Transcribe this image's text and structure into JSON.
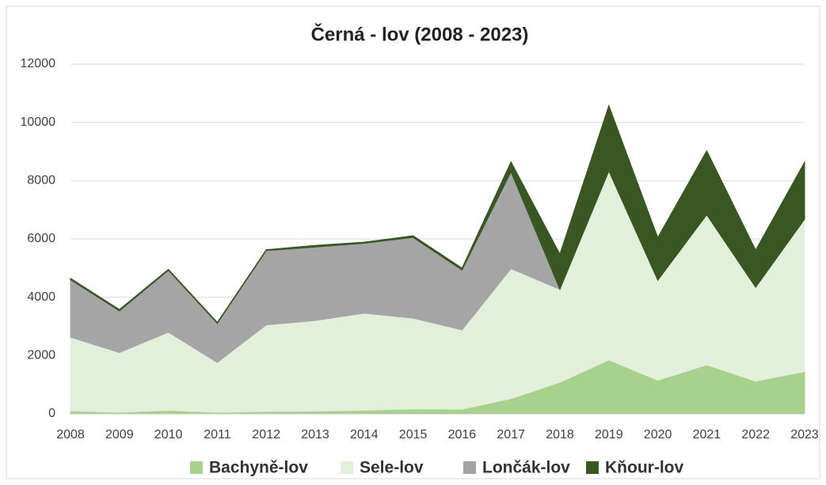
{
  "chart_data": {
    "type": "stacked_area",
    "title": "Černá - lov (2008 - 2023)",
    "categories": [
      "2008",
      "2009",
      "2010",
      "2011",
      "2012",
      "2013",
      "2014",
      "2015",
      "2016",
      "2017",
      "2018",
      "2019",
      "2020",
      "2021",
      "2022",
      "2023"
    ],
    "series": [
      {
        "name": "Bachyně-lov",
        "color": "#a9d18e",
        "values": [
          100,
          50,
          120,
          50,
          80,
          90,
          120,
          170,
          160,
          520,
          1080,
          1850,
          1150,
          1680,
          1120,
          1450
        ]
      },
      {
        "name": "Sele-lov",
        "color": "#e2efda",
        "values": [
          2530,
          2050,
          2680,
          1710,
          2970,
          3110,
          3330,
          3110,
          2720,
          4460,
          3190,
          6480,
          3430,
          5150,
          3220,
          5230
        ]
      },
      {
        "name": "Lončák-lov",
        "color": "#a5a5a5",
        "values": [
          1970,
          1430,
          2120,
          1340,
          2550,
          2520,
          2400,
          2770,
          2050,
          3320,
          0,
          0,
          0,
          0,
          0,
          0
        ]
      },
      {
        "name": "Kňour-lov",
        "color": "#385723",
        "values": [
          50,
          50,
          40,
          40,
          30,
          60,
          40,
          60,
          70,
          350,
          1210,
          2250,
          1470,
          2200,
          1280,
          1960
        ]
      }
    ],
    "ylim": [
      0,
      12000
    ],
    "yticks": [
      0,
      2000,
      4000,
      6000,
      8000,
      10000,
      12000
    ],
    "grid": true,
    "legend": "bottom"
  }
}
